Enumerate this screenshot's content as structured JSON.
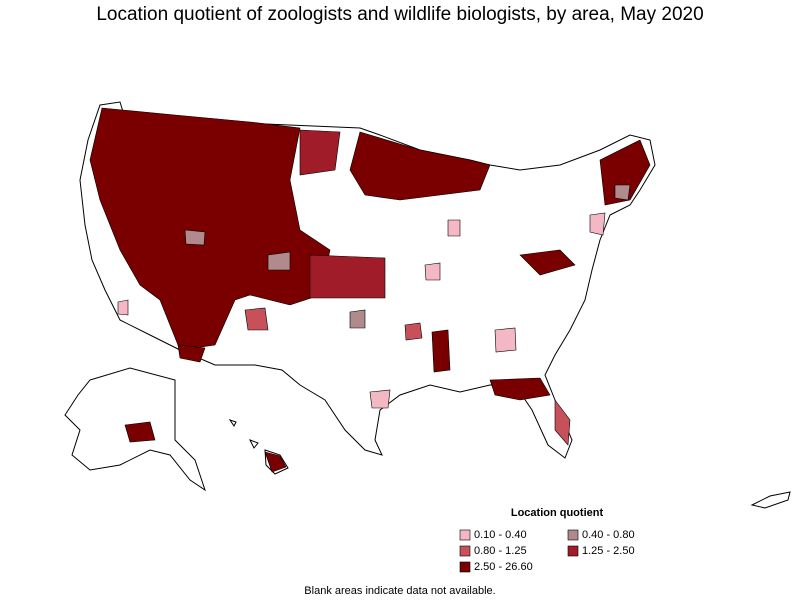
{
  "title": "Location quotient of zoologists and wildlife biologists, by area, May 2020",
  "legend": {
    "title": "Location quotient",
    "items": [
      {
        "label": "0.10 - 0.40",
        "color": "#f4b8c4"
      },
      {
        "label": "0.40 - 0.80",
        "color": "#b08a8c"
      },
      {
        "label": "0.80 - 1.25",
        "color": "#c8505a"
      },
      {
        "label": "1.25 - 2.50",
        "color": "#a01c28"
      },
      {
        "label": "2.50 - 26.60",
        "color": "#7a0000"
      }
    ]
  },
  "footnote": "Blank areas indicate data not available."
}
